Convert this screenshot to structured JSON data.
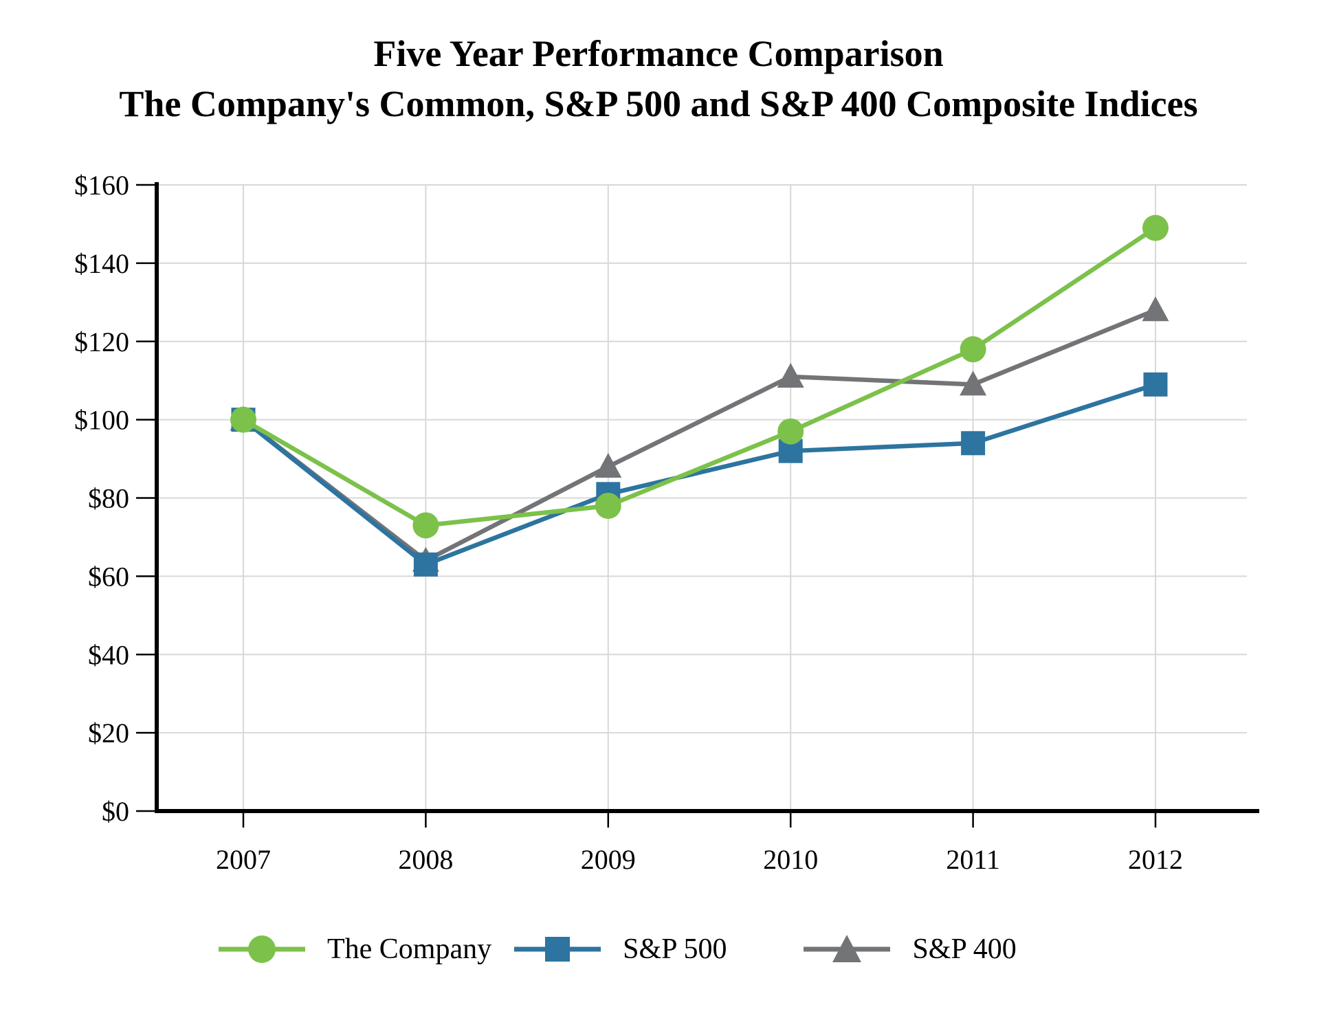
{
  "title": {
    "line1": "Five Year Performance Comparison",
    "line2": "The Company's Common, S&P 500 and S&P 400 Composite Indices"
  },
  "chart_data": {
    "type": "line",
    "categories": [
      "2007",
      "2008",
      "2009",
      "2010",
      "2011",
      "2012"
    ],
    "series": [
      {
        "name": "The Company",
        "marker": "circle",
        "color": "#7CC14A",
        "values": [
          100,
          73,
          78,
          97,
          118,
          149
        ]
      },
      {
        "name": "S&P 500",
        "marker": "square",
        "color": "#2D74A0",
        "values": [
          100,
          63,
          81,
          92,
          94,
          109
        ]
      },
      {
        "name": "S&P 400",
        "marker": "triangle",
        "color": "#737477",
        "values": [
          100,
          64,
          88,
          111,
          109,
          128
        ]
      }
    ],
    "ylim": [
      0,
      160
    ],
    "ytick_step": 20,
    "ytick_labels": [
      "$0",
      "$20",
      "$40",
      "$60",
      "$80",
      "$100",
      "$120",
      "$140",
      "$160"
    ],
    "xlabel": "",
    "ylabel": "",
    "grid": true,
    "legend_position": "bottom",
    "gridline_color": "#D8D8D8",
    "axis_color": "#000000",
    "background": "#FFFFFF"
  }
}
